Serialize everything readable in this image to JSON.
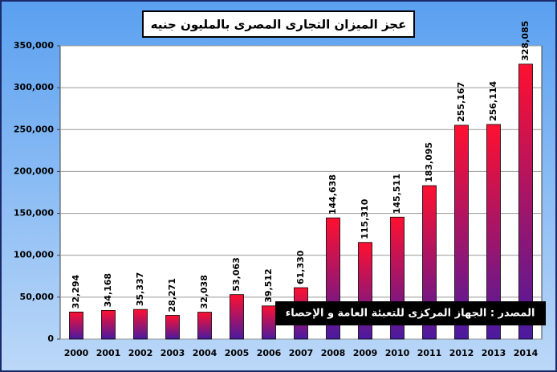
{
  "chart_data": {
    "type": "bar",
    "title": "عجز الميزان التجارى المصرى بالمليون جنيه",
    "annotation": "المصدر : الجهاز المركزى للتعبئة العامة و الإحصاء",
    "categories": [
      "2000",
      "2001",
      "2002",
      "2003",
      "2004",
      "2005",
      "2006",
      "2007",
      "2008",
      "2009",
      "2010",
      "2011",
      "2012",
      "2013",
      "2014"
    ],
    "values": [
      32294,
      34168,
      35337,
      28271,
      32038,
      53063,
      39512,
      61330,
      144638,
      115310,
      145511,
      183095,
      255167,
      256114,
      328085
    ],
    "value_labels": [
      "32,294",
      "34,168",
      "35,337",
      "28,271",
      "32,038",
      "53,063",
      "39,512",
      "61,330",
      "144,638",
      "115,310",
      "145,511",
      "183,095",
      "255,167",
      "256,114",
      "328,085"
    ],
    "color": [
      "#ff1030",
      "#4a1aa0"
    ],
    "ylim": [
      0,
      350000
    ],
    "yticks": [
      0,
      {
        "value": 50000,
        "label": "50,000"
      },
      {
        "value": 100000,
        "label": "100,000"
      },
      {
        "value": 150000,
        "label": "150,000"
      },
      {
        "value": 200000,
        "label": "200,000"
      },
      {
        "value": 250000,
        "label": "250,000"
      },
      {
        "value": 300000,
        "label": "300,000"
      },
      {
        "value": 350000,
        "label": "350,000"
      }
    ],
    "grid": true
  }
}
